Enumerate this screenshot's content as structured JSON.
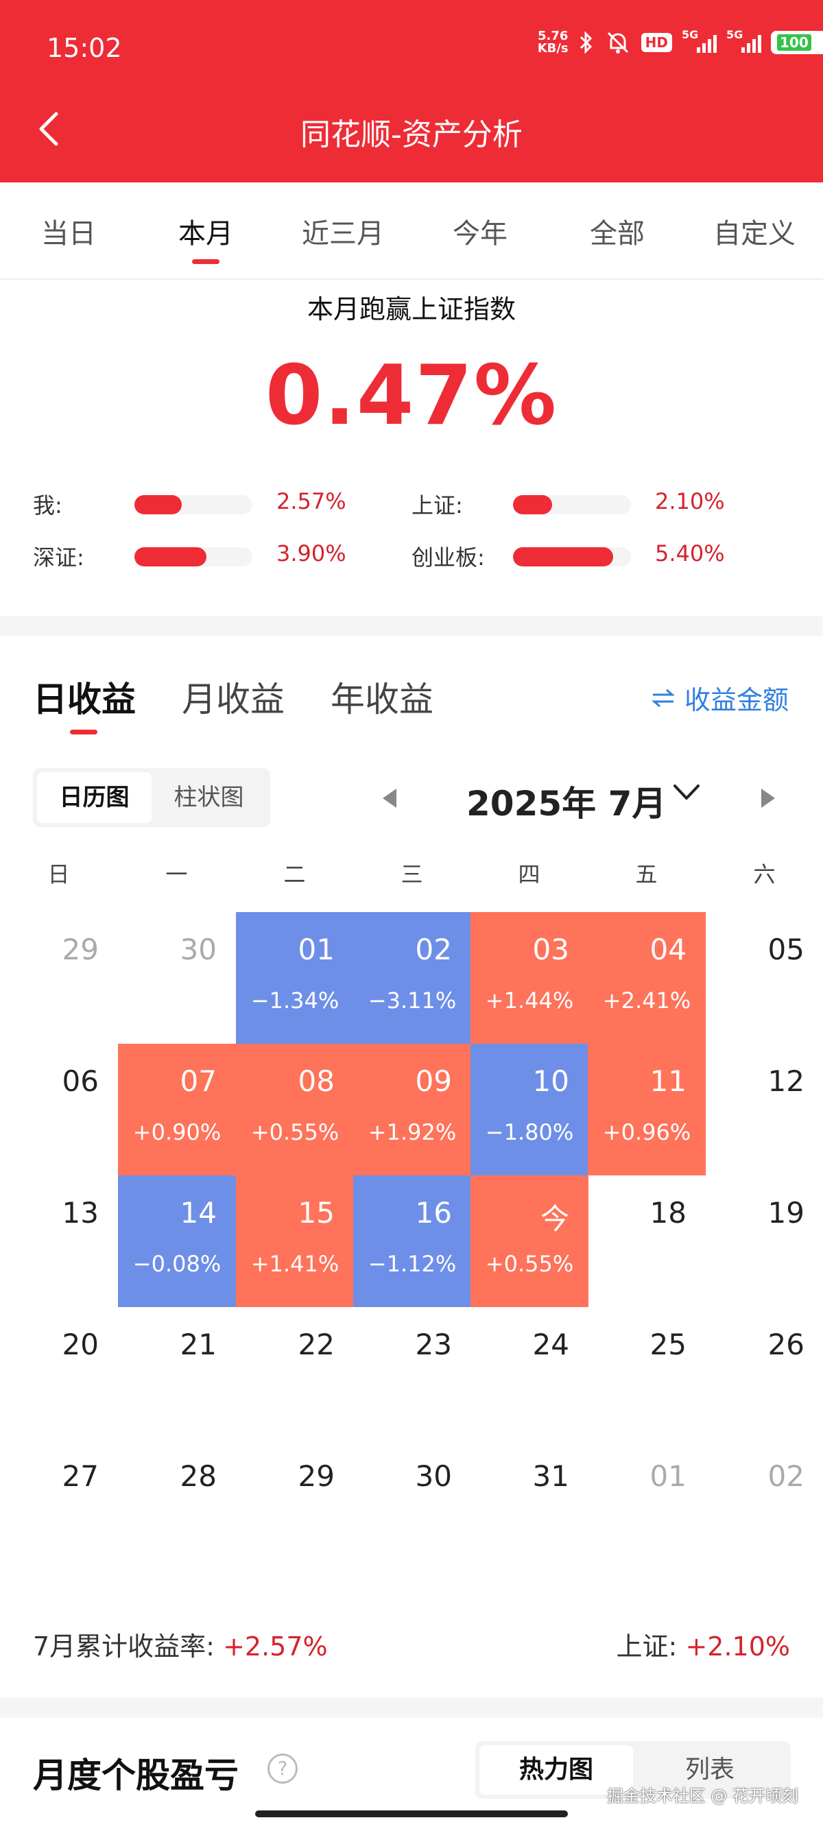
{
  "status_bar": {
    "time": "15:02",
    "net_speed_value": "5.76",
    "net_speed_unit": "KB/s",
    "hd_label": "HD",
    "signal_label_1": "5G",
    "signal_label_2": "5G",
    "battery": "100"
  },
  "header": {
    "title": "同花顺-资产分析"
  },
  "tabs": [
    {
      "label": "当日"
    },
    {
      "label": "本月",
      "active": true
    },
    {
      "label": "近三月"
    },
    {
      "label": "今年"
    },
    {
      "label": "全部"
    },
    {
      "label": "自定义"
    }
  ],
  "summary": {
    "title": "本月跑赢上证指数",
    "value": "0.47%",
    "benchmarks": [
      {
        "label": "我:",
        "value": "2.57%",
        "fill": 0.4
      },
      {
        "label": "上证:",
        "value": "2.10%",
        "fill": 0.33
      },
      {
        "label": "深证:",
        "value": "3.90%",
        "fill": 0.61
      },
      {
        "label": "创业板:",
        "value": "5.40%",
        "fill": 0.85
      }
    ]
  },
  "earn_tabs": [
    {
      "label": "日收益",
      "active": true
    },
    {
      "label": "月收益"
    },
    {
      "label": "年收益"
    }
  ],
  "amount_toggle": {
    "icon": "swap-icon",
    "label": "收益金额"
  },
  "view_toggle": [
    {
      "label": "日历图",
      "active": true
    },
    {
      "label": "柱状图"
    }
  ],
  "month_nav": {
    "label": "2025年 7月"
  },
  "weekdays": [
    "日",
    "一",
    "二",
    "三",
    "四",
    "五",
    "六"
  ],
  "calendar": [
    [
      {
        "d": "29",
        "muted": true
      },
      {
        "d": "30",
        "muted": true
      },
      {
        "d": "01",
        "pct": "−1.34%",
        "type": "down"
      },
      {
        "d": "02",
        "pct": "−3.11%",
        "type": "down"
      },
      {
        "d": "03",
        "pct": "+1.44%",
        "type": "up"
      },
      {
        "d": "04",
        "pct": "+2.41%",
        "type": "up"
      },
      {
        "d": "05"
      }
    ],
    [
      {
        "d": "06"
      },
      {
        "d": "07",
        "pct": "+0.90%",
        "type": "up"
      },
      {
        "d": "08",
        "pct": "+0.55%",
        "type": "up"
      },
      {
        "d": "09",
        "pct": "+1.92%",
        "type": "up"
      },
      {
        "d": "10",
        "pct": "−1.80%",
        "type": "down"
      },
      {
        "d": "11",
        "pct": "+0.96%",
        "type": "up"
      },
      {
        "d": "12"
      }
    ],
    [
      {
        "d": "13"
      },
      {
        "d": "14",
        "pct": "−0.08%",
        "type": "down"
      },
      {
        "d": "15",
        "pct": "+1.41%",
        "type": "up"
      },
      {
        "d": "16",
        "pct": "−1.12%",
        "type": "down"
      },
      {
        "d": "今",
        "pct": "+0.55%",
        "type": "up"
      },
      {
        "d": "18"
      },
      {
        "d": "19"
      }
    ],
    [
      {
        "d": "20"
      },
      {
        "d": "21"
      },
      {
        "d": "22"
      },
      {
        "d": "23"
      },
      {
        "d": "24"
      },
      {
        "d": "25"
      },
      {
        "d": "26"
      }
    ],
    [
      {
        "d": "27"
      },
      {
        "d": "28"
      },
      {
        "d": "29"
      },
      {
        "d": "30"
      },
      {
        "d": "31"
      },
      {
        "d": "01",
        "muted": true
      },
      {
        "d": "02",
        "muted": true
      }
    ]
  ],
  "totals": {
    "left_label": "7月累计收益率:",
    "left_value": "+2.57%",
    "right_label": "上证:",
    "right_value": "+2.10%"
  },
  "stock_section": {
    "title": "月度个股盈亏",
    "help": "?",
    "toggle": [
      {
        "label": "热力图",
        "active": true
      },
      {
        "label": "列表"
      }
    ],
    "watermark": "掘金技术社区 @ 花开顷刻"
  },
  "colors": {
    "brand_red": "#ee2c36",
    "up": "#fe735a",
    "down": "#6e8fe7",
    "link_blue": "#2f7fe0"
  }
}
